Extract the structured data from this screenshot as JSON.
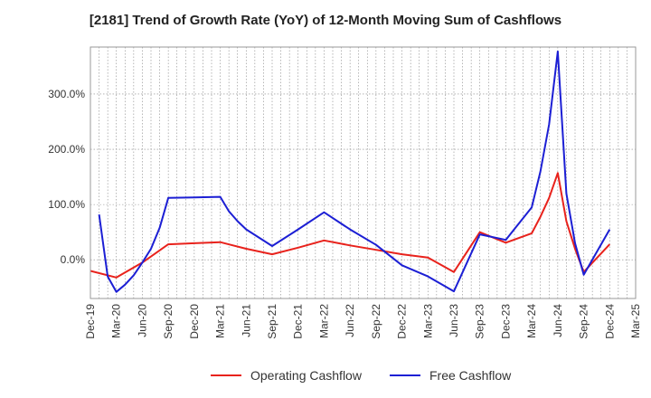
{
  "chart_data": {
    "type": "line",
    "title": "[2181]  Trend of Growth Rate (YoY) of 12-Month Moving Sum of Cashflows",
    "xlabel": "",
    "ylabel": "",
    "ylim": [
      -70,
      385
    ],
    "y_ticks": [
      {
        "value": 0,
        "label": "0.0%"
      },
      {
        "value": 100,
        "label": "100.0%"
      },
      {
        "value": 200,
        "label": "200.0%"
      },
      {
        "value": 300,
        "label": "300.0%"
      }
    ],
    "x_start": "2019-12",
    "x_end": "2025-03",
    "x_ticks": [
      "Dec-19",
      "Mar-20",
      "Jun-20",
      "Sep-20",
      "Dec-20",
      "Mar-21",
      "Jun-21",
      "Sep-21",
      "Dec-21",
      "Mar-22",
      "Jun-22",
      "Sep-22",
      "Dec-22",
      "Mar-23",
      "Jun-23",
      "Sep-23",
      "Dec-23",
      "Mar-24",
      "Jun-24",
      "Sep-24",
      "Dec-24",
      "Mar-25"
    ],
    "grid": true,
    "legend_position": "bottom",
    "series": [
      {
        "name": "Operating Cashflow",
        "color": "#e8221c",
        "points": [
          [
            "2019-12",
            -20
          ],
          [
            "2020-03",
            -32
          ],
          [
            "2020-06",
            -5
          ],
          [
            "2020-09",
            28
          ],
          [
            "2020-12",
            30
          ],
          [
            "2021-03",
            32
          ],
          [
            "2021-06",
            20
          ],
          [
            "2021-09",
            10
          ],
          [
            "2021-12",
            22
          ],
          [
            "2022-03",
            35
          ],
          [
            "2022-06",
            26
          ],
          [
            "2022-09",
            18
          ],
          [
            "2022-12",
            10
          ],
          [
            "2023-03",
            4
          ],
          [
            "2023-06",
            -22
          ],
          [
            "2023-09",
            50
          ],
          [
            "2023-12",
            31
          ],
          [
            "2024-03",
            48
          ],
          [
            "2024-04",
            78
          ],
          [
            "2024-05",
            112
          ],
          [
            "2024-06",
            157
          ],
          [
            "2024-07",
            70
          ],
          [
            "2024-08",
            20
          ],
          [
            "2024-09",
            -22
          ],
          [
            "2024-12",
            28
          ]
        ]
      },
      {
        "name": "Free Cashflow",
        "color": "#1c1fd4",
        "points": [
          [
            "2020-01",
            82
          ],
          [
            "2020-02",
            -30
          ],
          [
            "2020-03",
            -58
          ],
          [
            "2020-04",
            -45
          ],
          [
            "2020-05",
            -28
          ],
          [
            "2020-06",
            -5
          ],
          [
            "2020-07",
            20
          ],
          [
            "2020-08",
            58
          ],
          [
            "2020-09",
            112
          ],
          [
            "2020-12",
            113
          ],
          [
            "2021-03",
            114
          ],
          [
            "2021-04",
            88
          ],
          [
            "2021-05",
            70
          ],
          [
            "2021-06",
            55
          ],
          [
            "2021-09",
            25
          ],
          [
            "2021-12",
            55
          ],
          [
            "2022-03",
            86
          ],
          [
            "2022-06",
            55
          ],
          [
            "2022-09",
            27
          ],
          [
            "2022-12",
            -10
          ],
          [
            "2023-03",
            -30
          ],
          [
            "2023-06",
            -57
          ],
          [
            "2023-09",
            46
          ],
          [
            "2023-12",
            36
          ],
          [
            "2024-03",
            95
          ],
          [
            "2024-04",
            160
          ],
          [
            "2024-05",
            245
          ],
          [
            "2024-06",
            377
          ],
          [
            "2024-07",
            120
          ],
          [
            "2024-08",
            30
          ],
          [
            "2024-09",
            -27
          ],
          [
            "2024-12",
            55
          ]
        ]
      }
    ]
  }
}
